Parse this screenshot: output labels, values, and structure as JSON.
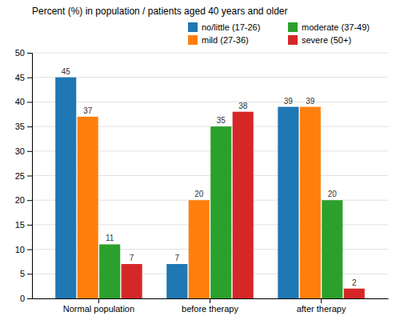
{
  "chart_data": {
    "type": "bar",
    "title": "Percent (%) in population / patients aged 40 years and older",
    "categories": [
      "Normal population",
      "before therapy",
      "after therapy"
    ],
    "series": [
      {
        "name": "no/little (17-26)",
        "values": [
          45,
          7,
          39
        ]
      },
      {
        "name": "mild (27-36)",
        "values": [
          37,
          20,
          39
        ]
      },
      {
        "name": "moderate (37-49)",
        "values": [
          11,
          35,
          20
        ]
      },
      {
        "name": "severe (50+)",
        "values": [
          7,
          38,
          2
        ]
      }
    ],
    "ylim": [
      0,
      50
    ],
    "yticks": [
      0,
      5,
      10,
      15,
      20,
      25,
      30,
      35,
      40,
      45,
      50
    ],
    "grid": true,
    "legend": "upper right",
    "data_labels": true
  }
}
